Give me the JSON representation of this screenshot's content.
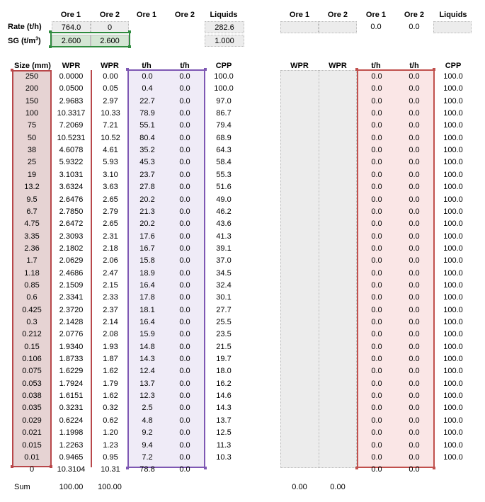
{
  "top": {
    "left_headers": [
      "Ore 1",
      "Ore 2",
      "Ore 1",
      "Ore 2",
      "Liquids"
    ],
    "right_headers": [
      "Ore 1",
      "Ore 2",
      "Ore 1",
      "Ore 2",
      "Liquids"
    ],
    "rate_label": "Rate (t/h)",
    "sg_label": "SG (t/m",
    "sg_label_sup": "3",
    "sg_label_end": ")",
    "rate_ore1": "764.0",
    "rate_ore2": "0",
    "rate_liquids": "282.6",
    "sg_ore1": "2.600",
    "sg_ore2": "2.600",
    "sg_liquids": "1.000",
    "right_rate_ore1": "0.0",
    "right_rate_ore2": "0.0"
  },
  "table": {
    "headers_left": [
      "Size (mm)",
      "WPR",
      "WPR",
      "t/h",
      "t/h",
      "CPP"
    ],
    "headers_right": [
      "WPR",
      "WPR",
      "t/h",
      "t/h",
      "CPP"
    ],
    "rows": [
      {
        "size": "250",
        "wpr1": "0.0000",
        "wpr2": "0.00",
        "th1": "0.0",
        "th2": "0.0",
        "cpp": "100.0",
        "r_th1": "0.0",
        "r_th2": "0.0",
        "r_cpp": "100.0"
      },
      {
        "size": "200",
        "wpr1": "0.0500",
        "wpr2": "0.05",
        "th1": "0.4",
        "th2": "0.0",
        "cpp": "100.0",
        "r_th1": "0.0",
        "r_th2": "0.0",
        "r_cpp": "100.0"
      },
      {
        "size": "150",
        "wpr1": "2.9683",
        "wpr2": "2.97",
        "th1": "22.7",
        "th2": "0.0",
        "cpp": "97.0",
        "r_th1": "0.0",
        "r_th2": "0.0",
        "r_cpp": "100.0"
      },
      {
        "size": "100",
        "wpr1": "10.3317",
        "wpr2": "10.33",
        "th1": "78.9",
        "th2": "0.0",
        "cpp": "86.7",
        "r_th1": "0.0",
        "r_th2": "0.0",
        "r_cpp": "100.0"
      },
      {
        "size": "75",
        "wpr1": "7.2069",
        "wpr2": "7.21",
        "th1": "55.1",
        "th2": "0.0",
        "cpp": "79.4",
        "r_th1": "0.0",
        "r_th2": "0.0",
        "r_cpp": "100.0"
      },
      {
        "size": "50",
        "wpr1": "10.5231",
        "wpr2": "10.52",
        "th1": "80.4",
        "th2": "0.0",
        "cpp": "68.9",
        "r_th1": "0.0",
        "r_th2": "0.0",
        "r_cpp": "100.0"
      },
      {
        "size": "38",
        "wpr1": "4.6078",
        "wpr2": "4.61",
        "th1": "35.2",
        "th2": "0.0",
        "cpp": "64.3",
        "r_th1": "0.0",
        "r_th2": "0.0",
        "r_cpp": "100.0"
      },
      {
        "size": "25",
        "wpr1": "5.9322",
        "wpr2": "5.93",
        "th1": "45.3",
        "th2": "0.0",
        "cpp": "58.4",
        "r_th1": "0.0",
        "r_th2": "0.0",
        "r_cpp": "100.0"
      },
      {
        "size": "19",
        "wpr1": "3.1031",
        "wpr2": "3.10",
        "th1": "23.7",
        "th2": "0.0",
        "cpp": "55.3",
        "r_th1": "0.0",
        "r_th2": "0.0",
        "r_cpp": "100.0"
      },
      {
        "size": "13.2",
        "wpr1": "3.6324",
        "wpr2": "3.63",
        "th1": "27.8",
        "th2": "0.0",
        "cpp": "51.6",
        "r_th1": "0.0",
        "r_th2": "0.0",
        "r_cpp": "100.0"
      },
      {
        "size": "9.5",
        "wpr1": "2.6476",
        "wpr2": "2.65",
        "th1": "20.2",
        "th2": "0.0",
        "cpp": "49.0",
        "r_th1": "0.0",
        "r_th2": "0.0",
        "r_cpp": "100.0"
      },
      {
        "size": "6.7",
        "wpr1": "2.7850",
        "wpr2": "2.79",
        "th1": "21.3",
        "th2": "0.0",
        "cpp": "46.2",
        "r_th1": "0.0",
        "r_th2": "0.0",
        "r_cpp": "100.0"
      },
      {
        "size": "4.75",
        "wpr1": "2.6472",
        "wpr2": "2.65",
        "th1": "20.2",
        "th2": "0.0",
        "cpp": "43.6",
        "r_th1": "0.0",
        "r_th2": "0.0",
        "r_cpp": "100.0"
      },
      {
        "size": "3.35",
        "wpr1": "2.3093",
        "wpr2": "2.31",
        "th1": "17.6",
        "th2": "0.0",
        "cpp": "41.3",
        "r_th1": "0.0",
        "r_th2": "0.0",
        "r_cpp": "100.0"
      },
      {
        "size": "2.36",
        "wpr1": "2.1802",
        "wpr2": "2.18",
        "th1": "16.7",
        "th2": "0.0",
        "cpp": "39.1",
        "r_th1": "0.0",
        "r_th2": "0.0",
        "r_cpp": "100.0"
      },
      {
        "size": "1.7",
        "wpr1": "2.0629",
        "wpr2": "2.06",
        "th1": "15.8",
        "th2": "0.0",
        "cpp": "37.0",
        "r_th1": "0.0",
        "r_th2": "0.0",
        "r_cpp": "100.0"
      },
      {
        "size": "1.18",
        "wpr1": "2.4686",
        "wpr2": "2.47",
        "th1": "18.9",
        "th2": "0.0",
        "cpp": "34.5",
        "r_th1": "0.0",
        "r_th2": "0.0",
        "r_cpp": "100.0"
      },
      {
        "size": "0.85",
        "wpr1": "2.1509",
        "wpr2": "2.15",
        "th1": "16.4",
        "th2": "0.0",
        "cpp": "32.4",
        "r_th1": "0.0",
        "r_th2": "0.0",
        "r_cpp": "100.0"
      },
      {
        "size": "0.6",
        "wpr1": "2.3341",
        "wpr2": "2.33",
        "th1": "17.8",
        "th2": "0.0",
        "cpp": "30.1",
        "r_th1": "0.0",
        "r_th2": "0.0",
        "r_cpp": "100.0"
      },
      {
        "size": "0.425",
        "wpr1": "2.3720",
        "wpr2": "2.37",
        "th1": "18.1",
        "th2": "0.0",
        "cpp": "27.7",
        "r_th1": "0.0",
        "r_th2": "0.0",
        "r_cpp": "100.0"
      },
      {
        "size": "0.3",
        "wpr1": "2.1428",
        "wpr2": "2.14",
        "th1": "16.4",
        "th2": "0.0",
        "cpp": "25.5",
        "r_th1": "0.0",
        "r_th2": "0.0",
        "r_cpp": "100.0"
      },
      {
        "size": "0.212",
        "wpr1": "2.0776",
        "wpr2": "2.08",
        "th1": "15.9",
        "th2": "0.0",
        "cpp": "23.5",
        "r_th1": "0.0",
        "r_th2": "0.0",
        "r_cpp": "100.0"
      },
      {
        "size": "0.15",
        "wpr1": "1.9340",
        "wpr2": "1.93",
        "th1": "14.8",
        "th2": "0.0",
        "cpp": "21.5",
        "r_th1": "0.0",
        "r_th2": "0.0",
        "r_cpp": "100.0"
      },
      {
        "size": "0.106",
        "wpr1": "1.8733",
        "wpr2": "1.87",
        "th1": "14.3",
        "th2": "0.0",
        "cpp": "19.7",
        "r_th1": "0.0",
        "r_th2": "0.0",
        "r_cpp": "100.0"
      },
      {
        "size": "0.075",
        "wpr1": "1.6229",
        "wpr2": "1.62",
        "th1": "12.4",
        "th2": "0.0",
        "cpp": "18.0",
        "r_th1": "0.0",
        "r_th2": "0.0",
        "r_cpp": "100.0"
      },
      {
        "size": "0.053",
        "wpr1": "1.7924",
        "wpr2": "1.79",
        "th1": "13.7",
        "th2": "0.0",
        "cpp": "16.2",
        "r_th1": "0.0",
        "r_th2": "0.0",
        "r_cpp": "100.0"
      },
      {
        "size": "0.038",
        "wpr1": "1.6151",
        "wpr2": "1.62",
        "th1": "12.3",
        "th2": "0.0",
        "cpp": "14.6",
        "r_th1": "0.0",
        "r_th2": "0.0",
        "r_cpp": "100.0"
      },
      {
        "size": "0.035",
        "wpr1": "0.3231",
        "wpr2": "0.32",
        "th1": "2.5",
        "th2": "0.0",
        "cpp": "14.3",
        "r_th1": "0.0",
        "r_th2": "0.0",
        "r_cpp": "100.0"
      },
      {
        "size": "0.029",
        "wpr1": "0.6224",
        "wpr2": "0.62",
        "th1": "4.8",
        "th2": "0.0",
        "cpp": "13.7",
        "r_th1": "0.0",
        "r_th2": "0.0",
        "r_cpp": "100.0"
      },
      {
        "size": "0.021",
        "wpr1": "1.1998",
        "wpr2": "1.20",
        "th1": "9.2",
        "th2": "0.0",
        "cpp": "12.5",
        "r_th1": "0.0",
        "r_th2": "0.0",
        "r_cpp": "100.0"
      },
      {
        "size": "0.015",
        "wpr1": "1.2263",
        "wpr2": "1.23",
        "th1": "9.4",
        "th2": "0.0",
        "cpp": "11.3",
        "r_th1": "0.0",
        "r_th2": "0.0",
        "r_cpp": "100.0"
      },
      {
        "size": "0.01",
        "wpr1": "0.9465",
        "wpr2": "0.95",
        "th1": "7.2",
        "th2": "0.0",
        "cpp": "10.3",
        "r_th1": "0.0",
        "r_th2": "0.0",
        "r_cpp": "100.0"
      },
      {
        "size": "0",
        "wpr1": "10.3104",
        "wpr2": "10.31",
        "th1": "78.8",
        "th2": "0.0",
        "cpp": "",
        "r_th1": "0.0",
        "r_th2": "0.0",
        "r_cpp": ""
      }
    ]
  },
  "sum": {
    "label": "Sum",
    "wpr1": "100.00",
    "wpr2": "100.00",
    "r_wpr1": "0.00",
    "r_wpr2": "0.00"
  },
  "colors": {
    "size_col_bg": "#e6d3d3",
    "size_col_border": "#b8474a",
    "wpr_ore2_border": "#b8474a",
    "th_frame_bg": "#efebf7",
    "th_frame_border": "#7e58b3",
    "right_th_frame_bg": "#fae6e6",
    "right_th_frame_border": "#c0504d",
    "grey_cell_bg": "#ececec",
    "green_cell_bg": "#d4e6d4",
    "green_cell_border": "#2e8b3e"
  }
}
